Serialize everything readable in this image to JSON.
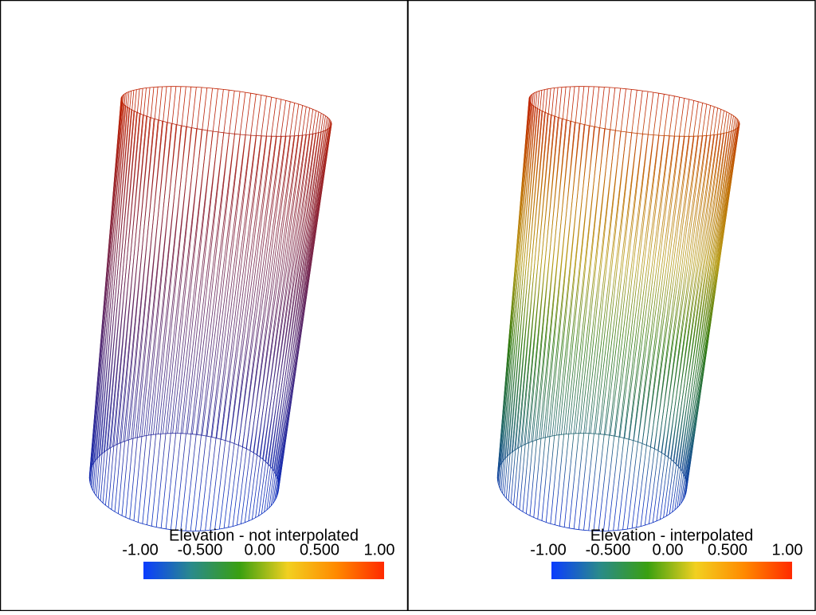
{
  "panels": [
    {
      "interpolated": false,
      "scalar_bar": {
        "title": "Elevation - not interpolated",
        "range": [
          -1,
          1
        ],
        "ticks": [
          {
            "value": -1,
            "label": "-1.00"
          },
          {
            "value": -0.5,
            "label": "-0.500"
          },
          {
            "value": 0,
            "label": "0.00"
          },
          {
            "value": 0.5,
            "label": "0.500"
          },
          {
            "value": 1,
            "label": "1.00"
          }
        ]
      }
    },
    {
      "interpolated": true,
      "scalar_bar": {
        "title": "Elevation - interpolated",
        "range": [
          -1,
          1
        ],
        "ticks": [
          {
            "value": -1,
            "label": "-1.00"
          },
          {
            "value": -0.5,
            "label": "-0.500"
          },
          {
            "value": 0,
            "label": "0.00"
          },
          {
            "value": 0.5,
            "label": "0.500"
          },
          {
            "value": 1,
            "label": "1.00"
          }
        ]
      }
    }
  ],
  "colormap": [
    "#0a3cff",
    "#2a8a8a",
    "#3aa010",
    "#f2d020",
    "#ff8a00",
    "#ff2a00"
  ]
}
